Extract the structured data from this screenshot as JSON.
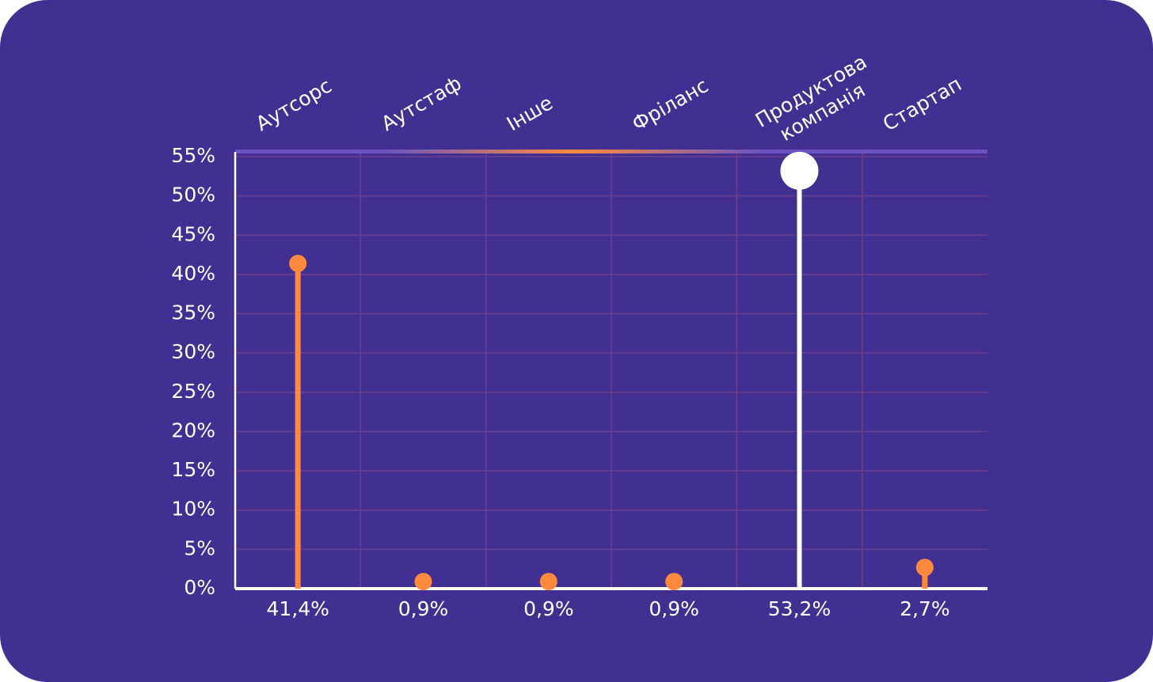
{
  "chart_data": {
    "type": "lollipop",
    "categories": [
      "Аутсорс",
      "Аутстаф",
      "Інше",
      "Фріланс",
      "Продуктова компанія",
      "Стартап"
    ],
    "values": [
      41.4,
      0.9,
      0.9,
      0.9,
      53.2,
      2.7
    ],
    "value_labels": [
      "41,4%",
      "0,9%",
      "0,9%",
      "0,9%",
      "53,2%",
      "2,7%"
    ],
    "colors": [
      "#ff8a3d",
      "#ff8a3d",
      "#ff8a3d",
      "#ff8a3d",
      "#ffffff",
      "#ff8a3d"
    ],
    "ylim": [
      0,
      55
    ],
    "yticks": [
      {
        "value": 0,
        "label": "0%"
      },
      {
        "value": 5,
        "label": "5%"
      },
      {
        "value": 10,
        "label": "10%"
      },
      {
        "value": 15,
        "label": "15%"
      },
      {
        "value": 20,
        "label": "20%"
      },
      {
        "value": 25,
        "label": "25%"
      },
      {
        "value": 30,
        "label": "30%"
      },
      {
        "value": 35,
        "label": "35%"
      },
      {
        "value": 40,
        "label": "40%"
      },
      {
        "value": 45,
        "label": "45%"
      },
      {
        "value": 50,
        "label": "50%"
      },
      {
        "value": 55,
        "label": "55%"
      }
    ],
    "grid": true
  }
}
